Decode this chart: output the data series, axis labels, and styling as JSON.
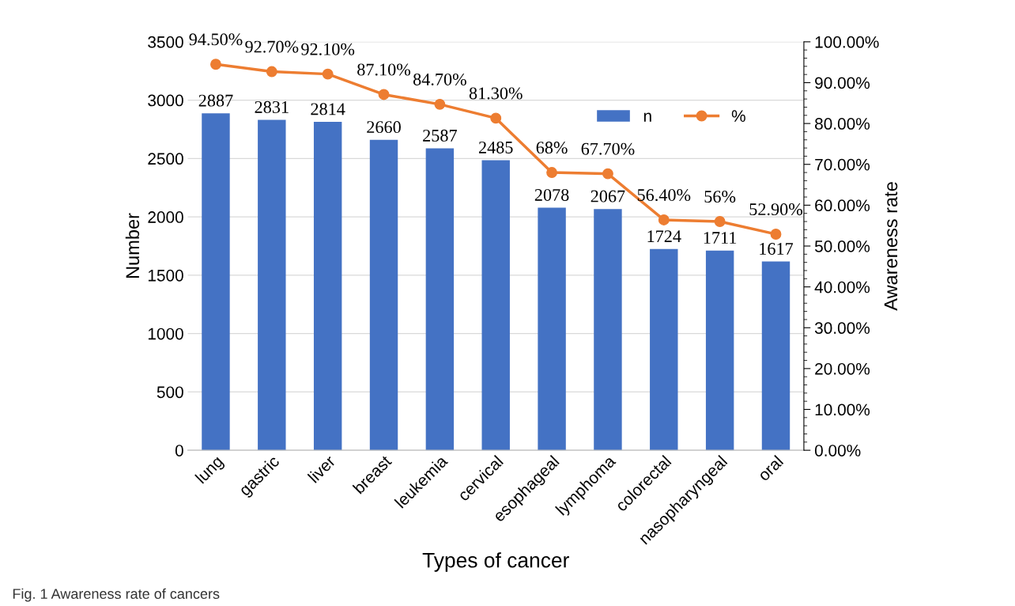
{
  "chart_data": {
    "type": "bar",
    "xlabel": "Types of cancer",
    "ylabel": "Number",
    "y2label": "Awareness rate",
    "categories": [
      "lung",
      "gastric",
      "liver",
      "breast",
      "leukemia",
      "cervical",
      "esophageal",
      "lymphoma",
      "colorectal",
      "nasopharyngeal",
      "oral"
    ],
    "series": [
      {
        "name": "n",
        "color": "#4472c4",
        "values": [
          2887,
          2831,
          2814,
          2660,
          2587,
          2485,
          2078,
          2067,
          1724,
          1711,
          1617
        ],
        "value_labels": [
          "2887",
          "2831",
          "2814",
          "2660",
          "2587",
          "2485",
          "2078",
          "2067",
          "1724",
          "1711",
          "1617"
        ]
      },
      {
        "name": "%",
        "type": "line",
        "axis": "y2",
        "color": "#ed7d31",
        "marker": "circle",
        "values": [
          94.5,
          92.7,
          92.1,
          87.1,
          84.7,
          81.3,
          68,
          67.7,
          56.4,
          56,
          52.9
        ],
        "value_labels": [
          "94.50%",
          "92.70%",
          "92.10%",
          "87.10%",
          "84.70%",
          "81.30%",
          "68%",
          "67.70%",
          "56.40%",
          "56%",
          "52.90%"
        ]
      }
    ],
    "ylim": [
      0,
      3500
    ],
    "yticks": [
      0,
      500,
      1000,
      1500,
      2000,
      2500,
      3000,
      3500
    ],
    "y2lim": [
      0,
      100
    ],
    "y2ticks": [
      {
        "value": 0,
        "label": "0.00%"
      },
      {
        "value": 10,
        "label": "10.00%"
      },
      {
        "value": 20,
        "label": "20.00%"
      },
      {
        "value": 30,
        "label": "30.00%"
      },
      {
        "value": 40,
        "label": "40.00%"
      },
      {
        "value": 50,
        "label": "50.00%"
      },
      {
        "value": 60,
        "label": "60.00%"
      },
      {
        "value": 70,
        "label": "70.00%"
      },
      {
        "value": 80,
        "label": "80.00%"
      },
      {
        "value": 90,
        "label": "90.00%"
      },
      {
        "value": 100,
        "label": "100.00%"
      }
    ],
    "grid": "y",
    "legend": "top right",
    "annotations": [
      "Fig. 1 Awareness rate of cancers"
    ]
  }
}
